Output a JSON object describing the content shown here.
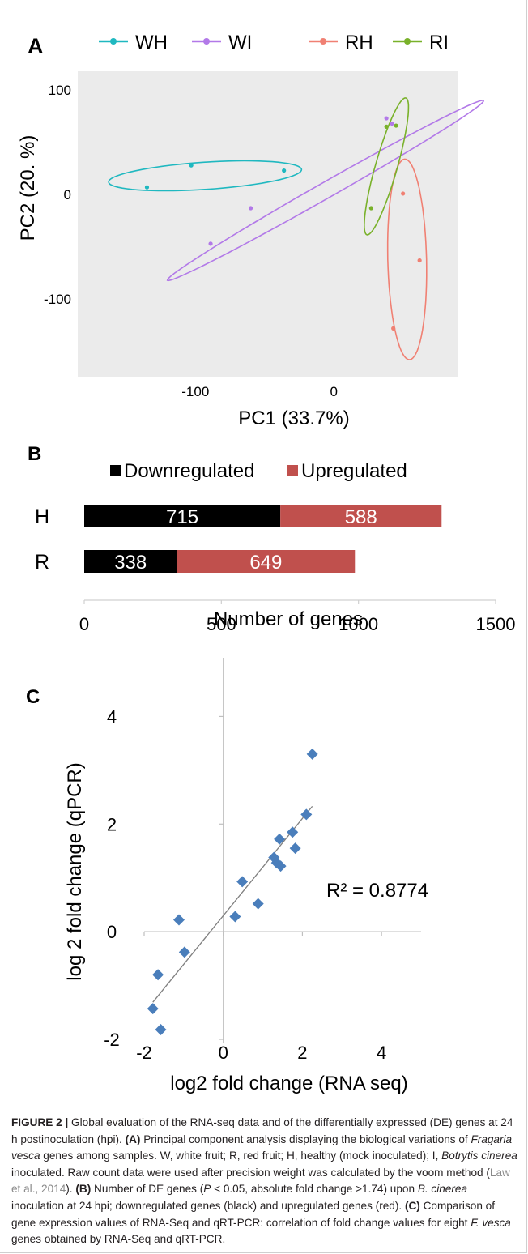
{
  "chart_data": [
    {
      "panel": "A",
      "type": "scatter",
      "xlabel": "PC1 (33.7%)",
      "ylabel": "PC2 (20. %)",
      "xlim": [
        -185,
        90
      ],
      "ylim": [
        -175,
        118
      ],
      "xticks": [
        -100,
        0
      ],
      "yticks": [
        100,
        0,
        -100
      ],
      "xticklabels": [
        "-100",
        "0"
      ],
      "yticklabels": [
        "100",
        "0",
        "-100"
      ],
      "grid": false,
      "background": "#ebebeb",
      "legend": "top",
      "series": [
        {
          "name": "WH",
          "color": "#1fb8c0",
          "points": [
            [
              -135,
              7
            ],
            [
              -103,
              28
            ],
            [
              -36,
              23
            ]
          ],
          "ellipse": {
            "cx": -93,
            "cy": 18,
            "rx": 70,
            "ry": 13,
            "angle": 5
          }
        },
        {
          "name": "WI",
          "color": "#b279e8",
          "points": [
            [
              -89,
              -47
            ],
            [
              -60,
              -13
            ],
            [
              38,
              73
            ],
            [
              42,
              68
            ]
          ],
          "ellipse": {
            "cx": -6,
            "cy": 4,
            "rx": 143,
            "ry": 7,
            "angle": 37
          }
        },
        {
          "name": "RH",
          "color": "#f08073",
          "points": [
            [
              50,
              1
            ],
            [
              62,
              -63
            ],
            [
              43,
              -128
            ]
          ],
          "ellipse": {
            "cx": 53,
            "cy": -62,
            "rx": 96,
            "ry": 14,
            "angle": 91
          }
        },
        {
          "name": "RI",
          "color": "#79b12a",
          "points": [
            [
              27,
              -13
            ],
            [
              38,
              65
            ],
            [
              45,
              66
            ]
          ],
          "ellipse": {
            "cx": 38,
            "cy": 27,
            "rx": 67,
            "ry": 8,
            "angle": 78
          }
        }
      ]
    },
    {
      "panel": "B",
      "type": "bar",
      "orientation": "horizontal",
      "stacked": true,
      "categories": [
        "H",
        "R"
      ],
      "series": [
        {
          "name": "Downregulated",
          "color": "#000000",
          "values": [
            715,
            338
          ]
        },
        {
          "name": "Upregulated",
          "color": "#c0504d",
          "values": [
            588,
            649
          ]
        }
      ],
      "xlabel": "Number of genes",
      "xlim": [
        0,
        1500
      ],
      "xticks": [
        0,
        500,
        1000,
        1500
      ],
      "xticklabels": [
        "0",
        "500",
        "1000",
        "1500"
      ],
      "legend": "top"
    },
    {
      "panel": "C",
      "type": "scatter",
      "xlabel": "log2 fold change (RNA seq)",
      "ylabel": "log 2 fold change (qPCR)",
      "xlim": [
        -2,
        5
      ],
      "ylim": [
        -2,
        5
      ],
      "xticks": [
        -2,
        0,
        2,
        4
      ],
      "yticks": [
        -2,
        0,
        2,
        4
      ],
      "xticklabels": [
        "-2",
        "0",
        "2",
        "4"
      ],
      "yticklabels": [
        "-2",
        "0",
        "2",
        "4"
      ],
      "color": "#4a7ebb",
      "marker": "diamond",
      "points": [
        [
          -1.78,
          -1.43
        ],
        [
          -1.58,
          -1.82
        ],
        [
          -1.65,
          -0.8
        ],
        [
          -1.12,
          0.22
        ],
        [
          -0.98,
          -0.38
        ],
        [
          0.3,
          0.28
        ],
        [
          0.48,
          0.93
        ],
        [
          0.88,
          0.52
        ],
        [
          1.28,
          1.38
        ],
        [
          1.35,
          1.28
        ],
        [
          1.42,
          1.72
        ],
        [
          1.45,
          1.22
        ],
        [
          1.75,
          1.85
        ],
        [
          1.82,
          1.55
        ],
        [
          2.1,
          2.18
        ],
        [
          2.25,
          3.3
        ]
      ],
      "trendline": {
        "x": [
          -1.78,
          2.25
        ],
        "y": [
          -1.31,
          2.33
        ],
        "color": "#7f7f7f"
      },
      "annotation": "R² = 0.8774",
      "grid": false
    }
  ],
  "panels": {
    "a_label": "A",
    "b_label": "B",
    "c_label": "C"
  },
  "caption": {
    "figure_label": "FIGURE 2 |",
    "text_1": " Global evaluation of the RNA-seq data and of the differentially expressed (DE) genes at 24 h postinoculation (hpi). ",
    "a_ref": "(A)",
    "text_2": " Principal component analysis displaying the biological variations of ",
    "species_1": "Fragaria vesca",
    "text_3": " genes among samples. W, white fruit; R, red fruit; H, healthy (mock inoculated); I, ",
    "species_2": "Botrytis cinerea",
    "text_4": " inoculated. Raw count data were used after precision weight was calculated by the voom method (",
    "citation": "Law et al., 2014",
    "text_5": "). ",
    "b_ref": "(B)",
    "text_6": " Number of DE genes (",
    "p_symbol": "P",
    "text_7": " < 0.05, absolute fold change >1.74) upon ",
    "species_3": "B. cinerea",
    "text_8": " inoculation at 24 hpi; downregulated genes (black) and upregulated genes (red). ",
    "c_ref": "(C)",
    "text_9": " Comparison of gene expression values of RNA-Seq and qRT-PCR: correlation of fold change values for eight ",
    "species_4": "F. vesca",
    "text_10": " genes obtained by RNA-Seq and qRT-PCR."
  }
}
